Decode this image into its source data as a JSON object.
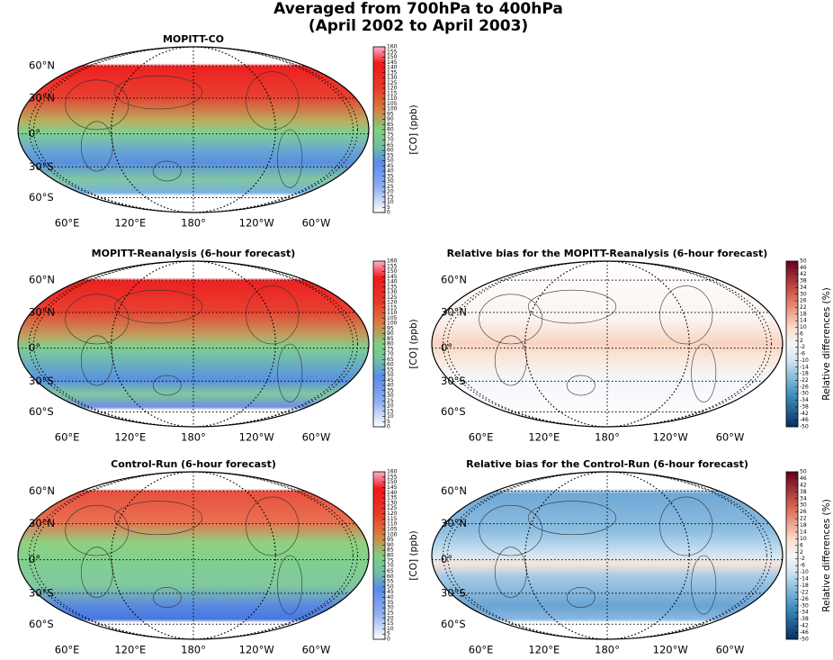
{
  "title": [
    "Averaged from 700hPa to 400hPa",
    "(April 2002 to April 2003)"
  ],
  "panels": [
    {
      "title": "MOPITT-CO",
      "lat_labels": [
        "60°N",
        "30°N",
        "0°",
        "30°S",
        "60°S"
      ],
      "lon_labels": [
        "60°E",
        "120°E",
        "180°",
        "120°W",
        "60°W"
      ],
      "colorbar": {
        "label": "[CO] (ppb)",
        "lim": [
          0,
          160
        ],
        "ticks": [
          0,
          5,
          10,
          15,
          20,
          25,
          30,
          35,
          40,
          45,
          50,
          55,
          60,
          65,
          70,
          75,
          80,
          85,
          90,
          95,
          100,
          105,
          110,
          115,
          120,
          125,
          130,
          135,
          140,
          145,
          150,
          155,
          160
        ]
      }
    },
    {
      "title": "MOPITT-Reanalysis (6-hour forecast)",
      "lat_labels": [
        "60°N",
        "30°N",
        "0°",
        "30°S",
        "60°S"
      ],
      "lon_labels": [
        "60°E",
        "120°E",
        "180°",
        "120°W",
        "60°W"
      ],
      "colorbar": {
        "label": "[CO] (ppb)",
        "lim": [
          0,
          160
        ],
        "ticks": [
          0,
          5,
          10,
          15,
          20,
          25,
          30,
          35,
          40,
          45,
          50,
          55,
          60,
          65,
          70,
          75,
          80,
          85,
          90,
          95,
          100,
          105,
          110,
          115,
          120,
          125,
          130,
          135,
          140,
          145,
          150,
          155,
          160
        ]
      }
    },
    {
      "title": "Relative bias for the MOPITT-Reanalysis (6-hour forecast)",
      "lat_labels": [
        "60°N",
        "30°N",
        "0°",
        "30°S",
        "60°S"
      ],
      "lon_labels": [
        "60°E",
        "120°E",
        "180°",
        "120°W",
        "60°W"
      ],
      "colorbar": {
        "label": "Relative differences (%)",
        "lim": [
          -50,
          50
        ],
        "ticks": [
          -50,
          -46,
          -42,
          -38,
          -34,
          -30,
          -26,
          -22,
          -18,
          -14,
          -10,
          -6,
          -2,
          2,
          6,
          10,
          14,
          18,
          22,
          26,
          30,
          34,
          38,
          42,
          46,
          50
        ]
      }
    },
    {
      "title": "Control-Run (6-hour forecast)",
      "lat_labels": [
        "60°N",
        "30°N",
        "0°",
        "30°S",
        "60°S"
      ],
      "lon_labels": [
        "60°E",
        "120°E",
        "180°",
        "120°W",
        "60°W"
      ],
      "colorbar": {
        "label": "[CO] (ppb)",
        "lim": [
          0,
          160
        ],
        "ticks": [
          0,
          5,
          10,
          15,
          20,
          25,
          30,
          35,
          40,
          45,
          50,
          55,
          60,
          65,
          70,
          75,
          80,
          85,
          90,
          95,
          100,
          105,
          110,
          115,
          120,
          125,
          130,
          135,
          140,
          145,
          150,
          155,
          160
        ]
      }
    },
    {
      "title": "Relative bias for the Control-Run (6-hour forecast)",
      "lat_labels": [
        "60°N",
        "30°N",
        "0°",
        "30°S",
        "60°S"
      ],
      "lon_labels": [
        "60°E",
        "120°E",
        "180°",
        "120°W",
        "60°W"
      ],
      "colorbar": {
        "label": "Relative differences (%)",
        "lim": [
          -50,
          50
        ],
        "ticks": [
          -50,
          -46,
          -42,
          -38,
          -34,
          -30,
          -26,
          -22,
          -18,
          -14,
          -10,
          -6,
          -2,
          2,
          6,
          10,
          14,
          18,
          22,
          26,
          30,
          34,
          38,
          42,
          46,
          50
        ]
      }
    }
  ]
}
